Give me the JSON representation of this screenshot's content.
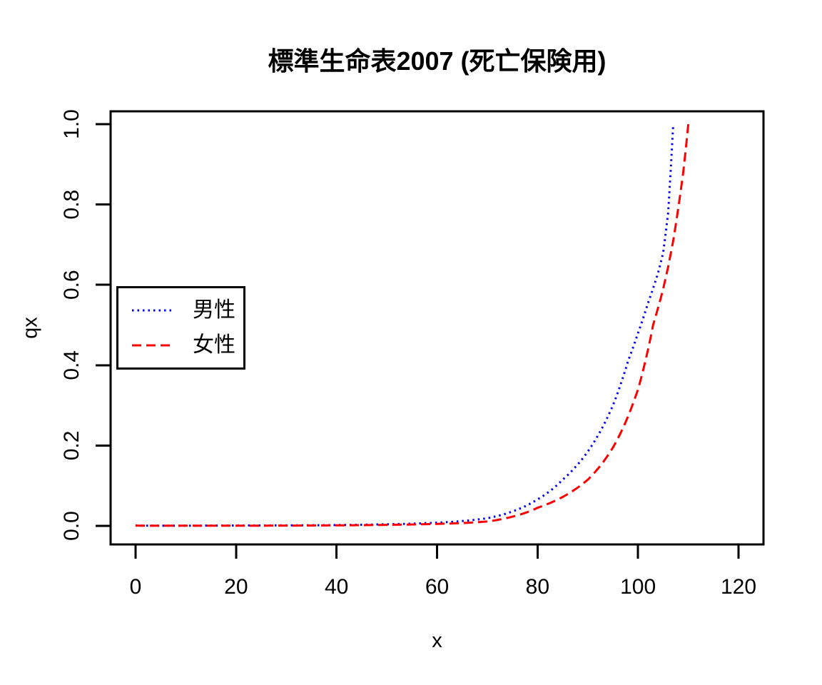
{
  "chart_data": {
    "type": "line",
    "title": "標準生命表2007 (死亡保険用)",
    "xlabel": "x",
    "ylabel": "qx",
    "xlim": [
      0,
      120
    ],
    "ylim": [
      0.0,
      1.0
    ],
    "x_ticks": [
      "0",
      "20",
      "40",
      "60",
      "80",
      "100",
      "120"
    ],
    "y_ticks": [
      "0.0",
      "0.2",
      "0.4",
      "0.6",
      "0.8",
      "1.0"
    ],
    "grid": false,
    "background": "#ffffff",
    "axis_color": "#000000",
    "legend": {
      "position": "left-middle",
      "border": "#000000",
      "entries": [
        {
          "label": "男性",
          "color": "#0000ff",
          "style": "dotted"
        },
        {
          "label": "女性",
          "color": "#ff0000",
          "style": "dashed"
        }
      ]
    },
    "series": [
      {
        "name": "男性",
        "color": "#0000ff",
        "line_style": "dotted",
        "points": [
          [
            0,
            0.0008
          ],
          [
            5,
            0.0004
          ],
          [
            10,
            0.0004
          ],
          [
            15,
            0.0007
          ],
          [
            20,
            0.001
          ],
          [
            30,
            0.0012
          ],
          [
            40,
            0.002
          ],
          [
            50,
            0.004
          ],
          [
            55,
            0.0055
          ],
          [
            60,
            0.008
          ],
          [
            65,
            0.012
          ],
          [
            70,
            0.019
          ],
          [
            75,
            0.036
          ],
          [
            80,
            0.066
          ],
          [
            85,
            0.115
          ],
          [
            90,
            0.185
          ],
          [
            95,
            0.3
          ],
          [
            98,
            0.41
          ],
          [
            100,
            0.48
          ],
          [
            102,
            0.555
          ],
          [
            104,
            0.63
          ],
          [
            105,
            0.68
          ],
          [
            106,
            0.78
          ],
          [
            107,
            1.0
          ]
        ]
      },
      {
        "name": "女性",
        "color": "#ff0000",
        "line_style": "dashed",
        "points": [
          [
            0,
            0.0007
          ],
          [
            5,
            0.0003
          ],
          [
            10,
            0.0003
          ],
          [
            15,
            0.0004
          ],
          [
            20,
            0.0005
          ],
          [
            30,
            0.0007
          ],
          [
            40,
            0.0013
          ],
          [
            50,
            0.0025
          ],
          [
            55,
            0.0035
          ],
          [
            60,
            0.005
          ],
          [
            65,
            0.007
          ],
          [
            70,
            0.011
          ],
          [
            75,
            0.023
          ],
          [
            80,
            0.045
          ],
          [
            85,
            0.072
          ],
          [
            90,
            0.115
          ],
          [
            95,
            0.195
          ],
          [
            100,
            0.34
          ],
          [
            103,
            0.5
          ],
          [
            105,
            0.59
          ],
          [
            106,
            0.645
          ],
          [
            107,
            0.71
          ],
          [
            108,
            0.79
          ],
          [
            109,
            0.88
          ],
          [
            110,
            1.0
          ]
        ]
      }
    ]
  }
}
